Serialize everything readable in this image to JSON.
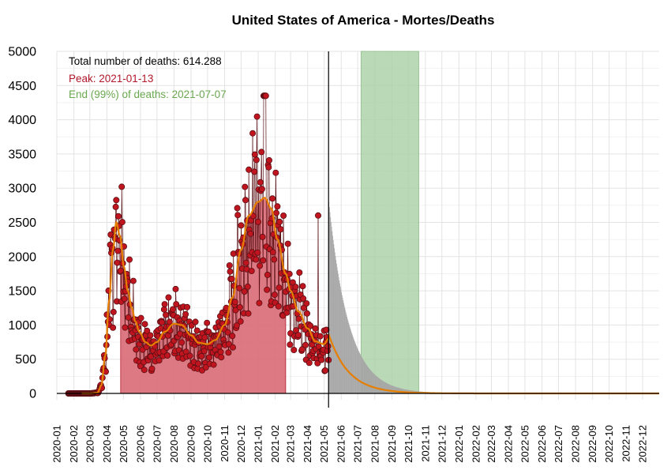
{
  "chart_data": {
    "type": "bar",
    "title": "United States of America - Mortes/Deaths",
    "xlabel": "",
    "ylabel": "",
    "xlim": [
      "2020-01-01",
      "2022-12-31"
    ],
    "ylim": [
      0,
      5000
    ],
    "yticks": [
      0,
      500,
      1000,
      1500,
      2000,
      2500,
      3000,
      3500,
      4000,
      4500,
      5000
    ],
    "xticks": [
      "2020-01",
      "2020-02",
      "2020-03",
      "2020-04",
      "2020-05",
      "2020-06",
      "2020-07",
      "2020-08",
      "2020-09",
      "2020-10",
      "2020-11",
      "2020-12",
      "2021-01",
      "2021-02",
      "2021-03",
      "2021-04",
      "2021-05",
      "2021-06",
      "2021-07",
      "2021-08",
      "2021-09",
      "2021-10",
      "2021-11",
      "2021-12",
      "2022-01",
      "2022-02",
      "2022-03",
      "2022-04",
      "2022-05",
      "2022-06",
      "2022-07",
      "2022-08",
      "2022-09",
      "2022-10",
      "2022-11",
      "2022-12"
    ],
    "grid": true,
    "annotations": {
      "total": "Total number of deaths: 614.288",
      "peak": "Peak: 2021-01-13",
      "end": "End (99%) of deaths: 2021-07-07"
    },
    "today_line": "2021-05-09",
    "highlight_band": {
      "start": "2021-07-07",
      "end": "2021-10-20"
    },
    "observed_area": {
      "start": "2020-04-26",
      "end": "2021-02-20"
    },
    "observed_smoothed": [
      {
        "x": "2020-02-15",
        "y": 0
      },
      {
        "x": "2020-03-01",
        "y": 0
      },
      {
        "x": "2020-03-15",
        "y": 10
      },
      {
        "x": "2020-03-22",
        "y": 120
      },
      {
        "x": "2020-03-29",
        "y": 550
      },
      {
        "x": "2020-04-05",
        "y": 1350
      },
      {
        "x": "2020-04-12",
        "y": 2100
      },
      {
        "x": "2020-04-18",
        "y": 2500
      },
      {
        "x": "2020-04-25",
        "y": 2300
      },
      {
        "x": "2020-05-02",
        "y": 1850
      },
      {
        "x": "2020-05-09",
        "y": 1500
      },
      {
        "x": "2020-05-16",
        "y": 1250
      },
      {
        "x": "2020-05-23",
        "y": 1050
      },
      {
        "x": "2020-05-30",
        "y": 900
      },
      {
        "x": "2020-06-10",
        "y": 750
      },
      {
        "x": "2020-06-20",
        "y": 700
      },
      {
        "x": "2020-07-01",
        "y": 750
      },
      {
        "x": "2020-07-15",
        "y": 900
      },
      {
        "x": "2020-08-01",
        "y": 1020
      },
      {
        "x": "2020-08-15",
        "y": 1000
      },
      {
        "x": "2020-09-01",
        "y": 850
      },
      {
        "x": "2020-09-15",
        "y": 740
      },
      {
        "x": "2020-10-01",
        "y": 720
      },
      {
        "x": "2020-10-15",
        "y": 780
      },
      {
        "x": "2020-11-01",
        "y": 1000
      },
      {
        "x": "2020-11-15",
        "y": 1400
      },
      {
        "x": "2020-12-01",
        "y": 2100
      },
      {
        "x": "2020-12-15",
        "y": 2600
      },
      {
        "x": "2021-01-01",
        "y": 2800
      },
      {
        "x": "2021-01-13",
        "y": 2860
      },
      {
        "x": "2021-01-25",
        "y": 2700
      },
      {
        "x": "2021-02-05",
        "y": 2250
      },
      {
        "x": "2021-02-20",
        "y": 1750
      },
      {
        "x": "2021-03-01",
        "y": 1500
      },
      {
        "x": "2021-03-15",
        "y": 1200
      },
      {
        "x": "2021-04-01",
        "y": 950
      },
      {
        "x": "2021-04-15",
        "y": 760
      },
      {
        "x": "2021-05-01",
        "y": 720
      },
      {
        "x": "2021-05-09",
        "y": 800
      }
    ],
    "forecast_start": "2021-05-09",
    "forecast_start_value": 2800,
    "forecast_decay_days": 36,
    "forecast_end": "2022-12-31",
    "fit_start_value": 870
  }
}
